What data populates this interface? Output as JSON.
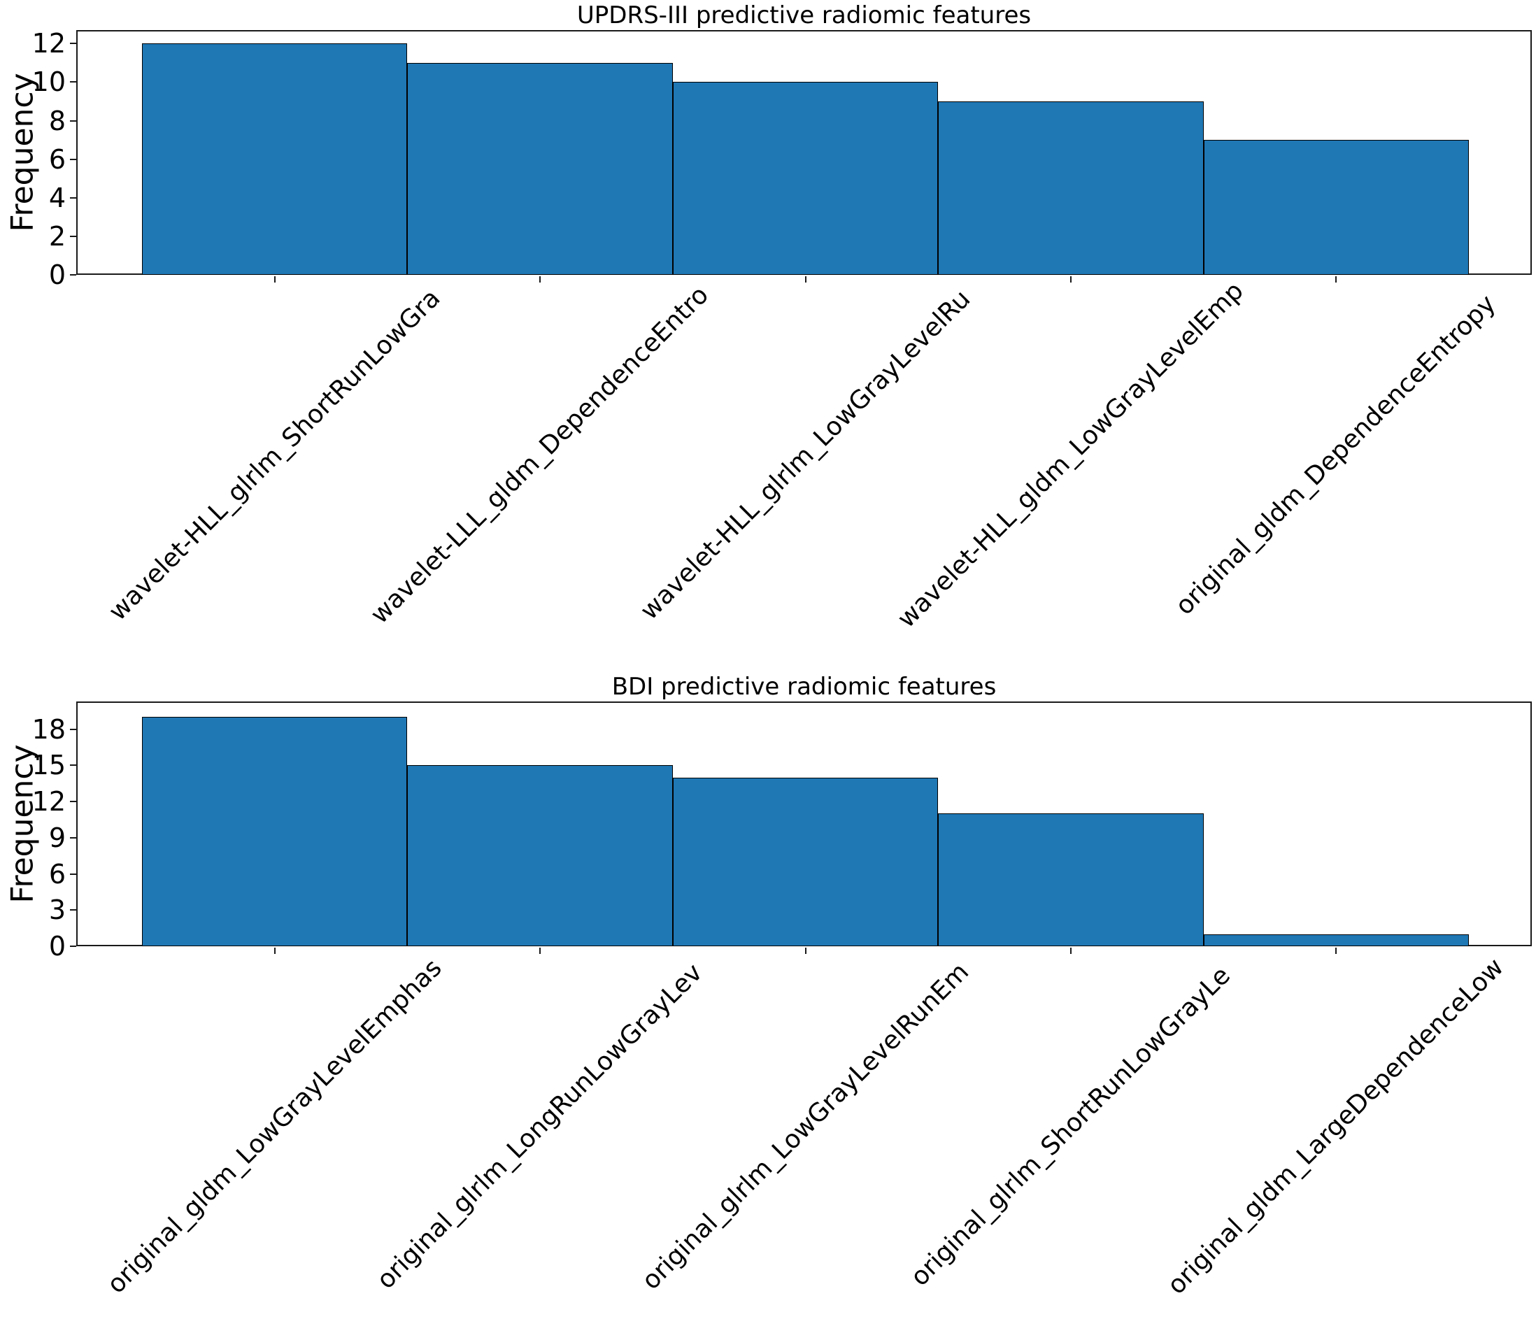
{
  "figure_title": "",
  "chart_data": [
    {
      "type": "bar",
      "title": "UPDRS-III predictive radiomic features",
      "ylabel": "Frequency",
      "xlabel": "",
      "categories": [
        "wavelet-HLL_glrlm_ShortRunLowGra",
        "wavelet-LLL_gldm_DependenceEntro",
        "wavelet-HLL_glrlm_LowGrayLevelRu",
        "wavelet-HLL_gldm_LowGrayLevelEmp",
        "original_gldm_DependenceEntropy"
      ],
      "values": [
        12,
        11,
        10,
        9,
        7
      ],
      "yticks": [
        0,
        2,
        4,
        6,
        8,
        10,
        12
      ],
      "ylim": [
        0,
        12.7
      ],
      "grid": false,
      "legend": "none",
      "bar_color": "#1f77b4",
      "edge_color": "#000000"
    },
    {
      "type": "bar",
      "title": "BDI predictive radiomic features",
      "ylabel": "Frequency",
      "xlabel": "",
      "categories": [
        "original_gldm_LowGrayLevelEmphas",
        "original_glrlm_LongRunLowGrayLev",
        "original_glrlm_LowGrayLevelRunEm",
        "original_glrlm_ShortRunLowGrayLe",
        "original_gldm_LargeDependenceLow"
      ],
      "values": [
        19,
        15,
        14,
        11,
        1
      ],
      "yticks": [
        0,
        3,
        6,
        9,
        12,
        15,
        18
      ],
      "ylim": [
        0,
        20.3
      ],
      "grid": false,
      "legend": "none",
      "bar_color": "#1f77b4",
      "edge_color": "#000000"
    }
  ]
}
